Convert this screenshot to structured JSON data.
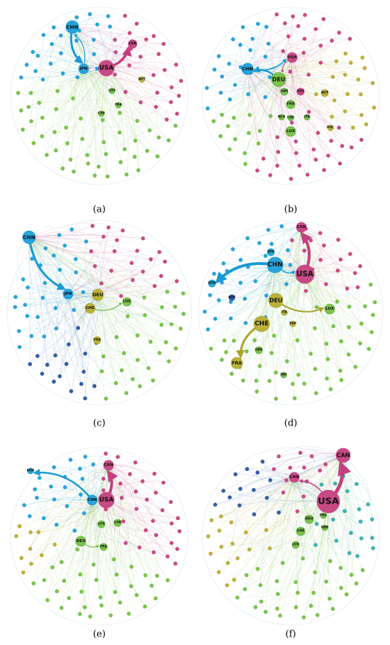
{
  "panels": [
    {
      "label": "(a)",
      "nodes": [
        "CHN",
        "JPN",
        "USA",
        "CAN",
        "AUT",
        "LUX",
        "FRA",
        "CHE"
      ]
    },
    {
      "label": "(b)",
      "nodes": [
        "CHN",
        "USA",
        "DEU",
        "GBR",
        "RUS",
        "AUT",
        "FRA",
        "NLD",
        "CHE",
        "ITA",
        "LUX",
        "POL"
      ]
    },
    {
      "label": "(c)",
      "nodes": [
        "CHN",
        "JPN",
        "DEU",
        "CHE",
        "LUX",
        "FRA"
      ]
    },
    {
      "label": "(d)",
      "nodes": [
        "CAN",
        "CHN",
        "USA",
        "JPN",
        "KOR",
        "DEU",
        "ITA",
        "LUX",
        "CHE",
        "FRA",
        "GBR",
        "IND",
        "AUS",
        "ESP"
      ]
    },
    {
      "label": "(e)",
      "nodes": [
        "CAN",
        "CHN",
        "USA",
        "LUX",
        "CHE",
        "DEU",
        "FRA",
        "KOR"
      ]
    },
    {
      "label": "(f)",
      "nodes": [
        "CHN",
        "CAN",
        "USA",
        "DEU",
        "CHE",
        "FRA",
        "GBR",
        "LUX"
      ]
    }
  ]
}
